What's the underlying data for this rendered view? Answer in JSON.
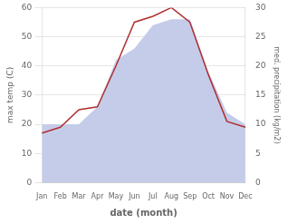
{
  "chart_data": {
    "type": "line",
    "xlabel": "date (month)",
    "ylabel": "max temp (C)",
    "y2label": "med. precipitation (kg/m2)",
    "categories": [
      "Jan",
      "Feb",
      "Mar",
      "Apr",
      "May",
      "Jun",
      "Jul",
      "Aug",
      "Sep",
      "Oct",
      "Nov",
      "Dec"
    ],
    "series": [
      {
        "type": "area",
        "color": "#c5ccea",
        "axis": "y2",
        "values": [
          10,
          10,
          10,
          13,
          21,
          23,
          27,
          28,
          28,
          19,
          12,
          10
        ]
      },
      {
        "type": "line",
        "color": "#b03030",
        "values": [
          17,
          19,
          25,
          26,
          40,
          55,
          57,
          60,
          55,
          37,
          21,
          19
        ]
      }
    ],
    "ylim": [
      0,
      60
    ],
    "yticks": [
      0,
      10,
      20,
      30,
      40,
      50,
      60
    ],
    "y2lim": [
      0,
      30
    ],
    "y2ticks": [
      0,
      5,
      10,
      15,
      20,
      25,
      30
    ],
    "grid": true
  }
}
